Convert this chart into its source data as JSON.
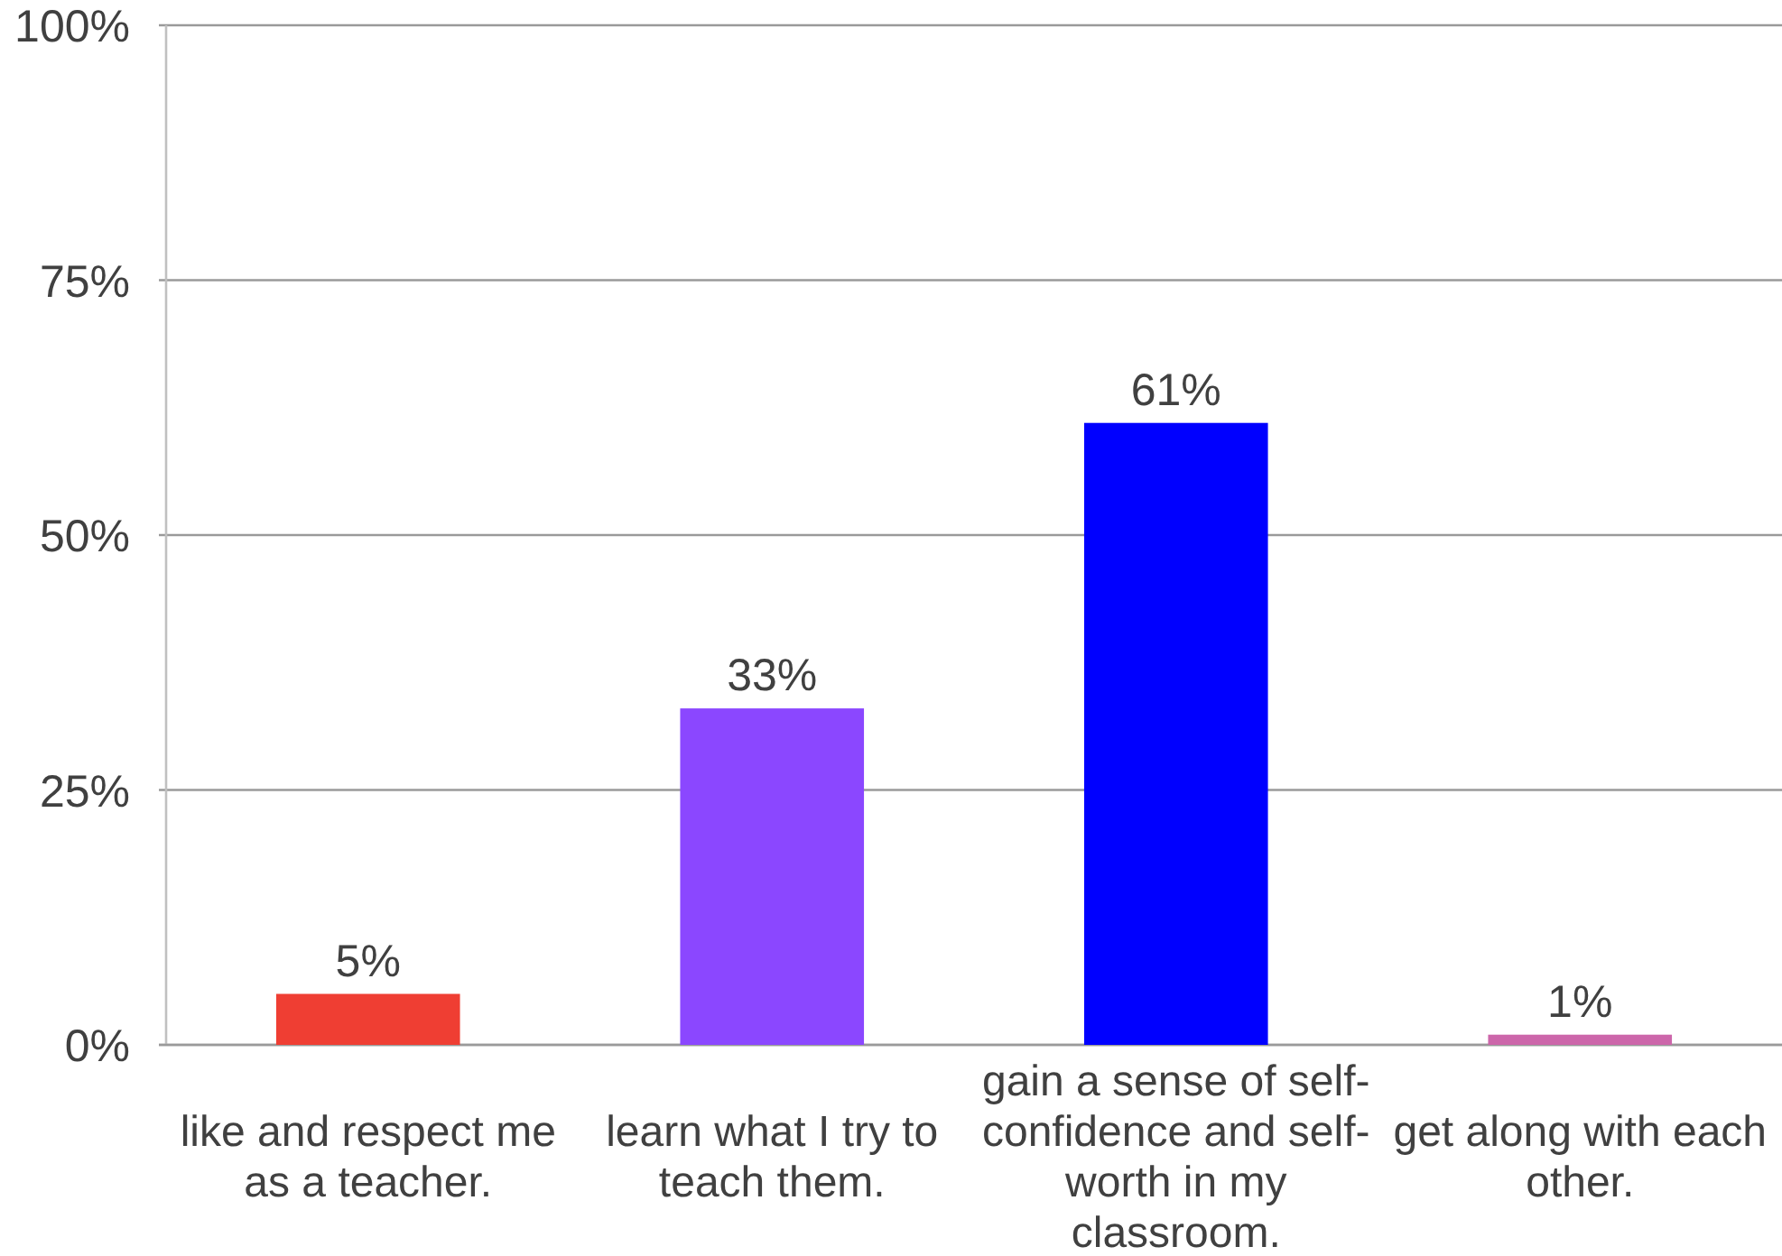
{
  "chart_data": {
    "type": "bar",
    "categories": [
      "like and respect me as a teacher.",
      "learn what I try to teach them.",
      "gain a sense of self-confidence and self-worth in my classroom.",
      "get along with each other."
    ],
    "values": [
      5,
      33,
      61,
      1
    ],
    "colors": [
      "#ef3e33",
      "#8b47ff",
      "#0000ff",
      "#cc66aa"
    ],
    "value_labels": [
      "5%",
      "33%",
      "61%",
      "1%"
    ],
    "ylim": [
      0,
      100
    ],
    "yticks": [
      {
        "value": 0,
        "label": "0%"
      },
      {
        "value": 25,
        "label": "25%"
      },
      {
        "value": 50,
        "label": "50%"
      },
      {
        "value": 75,
        "label": "75%"
      },
      {
        "value": 100,
        "label": "100%"
      }
    ],
    "grid": "y"
  }
}
